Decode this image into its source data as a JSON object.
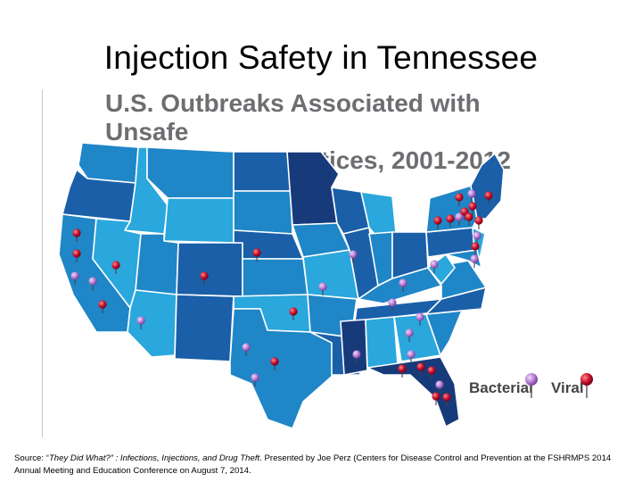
{
  "slide": {
    "title": "Injection Safety in Tennessee"
  },
  "map": {
    "title_line1": "U.S. Outbreaks Associated with Unsafe",
    "title_line2": "Injection Practices, 2001-2012",
    "legend": {
      "bacterial_label": "Bacterial",
      "viral_label": "Viral",
      "bacterial_pin_color": "#b57fd1",
      "viral_pin_color": "#c8102e"
    },
    "colors": {
      "state_light": "#2aa7dc",
      "state_mid": "#1f86c7",
      "state_dark": "#1a5fa8",
      "state_darkest": "#173a7a",
      "border": "#ffffff"
    }
  },
  "source": {
    "prefix": "Source: “",
    "italic_title": "They Did What?” : Infections, Injections, and Drug Theft",
    "rest": ". Presented by Joe Perz (Centers for Disease Control and Prevention at the FSHRMPS 2014 Annual Meeting and Education Conference on August 7, 2014."
  }
}
